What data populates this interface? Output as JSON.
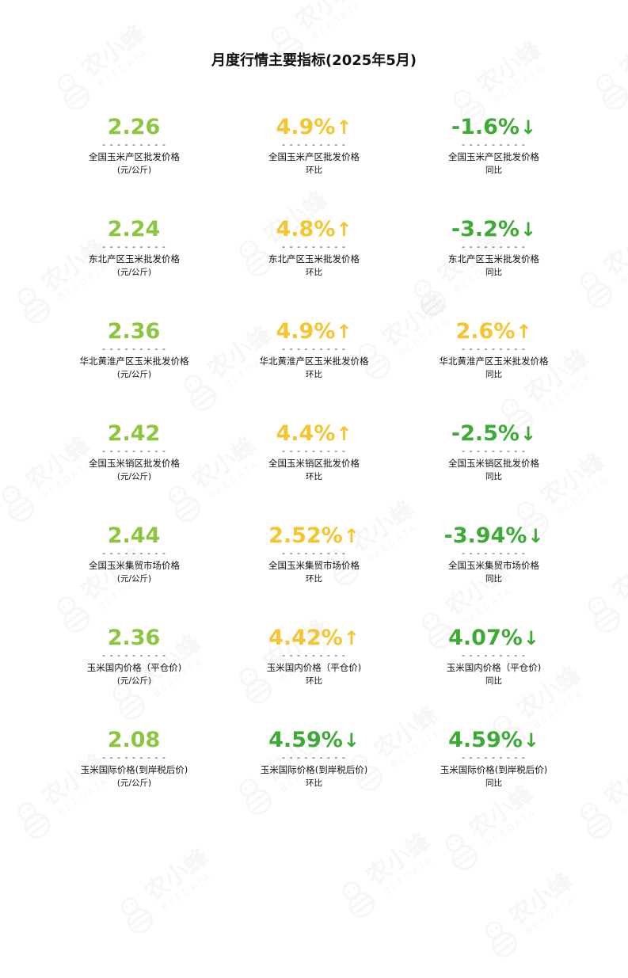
{
  "title": "月度行情主要指标(2025年5月)",
  "watermark": {
    "text_cn": "农小蜂",
    "text_en": "BEEDATA",
    "color": "#c9c9c9"
  },
  "colors": {
    "lime": "#8cc63f",
    "yellow": "#f5c431",
    "green": "#3daa35"
  },
  "divider": "- - - - - - - - -",
  "rows": [
    {
      "label": "全国玉米产区批发价格",
      "cells": [
        {
          "value": "2.26",
          "arrow": "",
          "color": "lime",
          "sub": "(元/公斤)"
        },
        {
          "value": "4.9%",
          "arrow": "↑",
          "color": "yellow",
          "sub": "环比"
        },
        {
          "value": "-1.6%",
          "arrow": "↓",
          "color": "green",
          "sub": "同比"
        }
      ]
    },
    {
      "label": "东北产区玉米批发价格",
      "cells": [
        {
          "value": "2.24",
          "arrow": "",
          "color": "lime",
          "sub": "(元/公斤)"
        },
        {
          "value": "4.8%",
          "arrow": "↑",
          "color": "yellow",
          "sub": "环比"
        },
        {
          "value": "-3.2%",
          "arrow": "↓",
          "color": "green",
          "sub": "同比"
        }
      ]
    },
    {
      "label": "华北黄淮产区玉米批发价格",
      "cells": [
        {
          "value": "2.36",
          "arrow": "",
          "color": "lime",
          "sub": "(元/公斤)"
        },
        {
          "value": "4.9%",
          "arrow": "↑",
          "color": "yellow",
          "sub": "环比"
        },
        {
          "value": "2.6%",
          "arrow": "↑",
          "color": "yellow",
          "sub": "同比"
        }
      ]
    },
    {
      "label": "全国玉米销区批发价格",
      "cells": [
        {
          "value": "2.42",
          "arrow": "",
          "color": "lime",
          "sub": "(元/公斤)"
        },
        {
          "value": "4.4%",
          "arrow": "↑",
          "color": "yellow",
          "sub": "环比"
        },
        {
          "value": "-2.5%",
          "arrow": "↓",
          "color": "green",
          "sub": "同比"
        }
      ]
    },
    {
      "label": "全国玉米集贸市场价格",
      "cells": [
        {
          "value": "2.44",
          "arrow": "",
          "color": "lime",
          "sub": "(元/公斤)"
        },
        {
          "value": "2.52%",
          "arrow": "↑",
          "color": "yellow",
          "sub": "环比"
        },
        {
          "value": "-3.94%",
          "arrow": "↓",
          "color": "green",
          "sub": "同比"
        }
      ]
    },
    {
      "label": "玉米国内价格（平仓价)",
      "cells": [
        {
          "value": "2.36",
          "arrow": "",
          "color": "lime",
          "sub": "(元/公斤)"
        },
        {
          "value": "4.42%",
          "arrow": "↑",
          "color": "yellow",
          "sub": "环比"
        },
        {
          "value": "4.07%",
          "arrow": "↓",
          "color": "green",
          "sub": "同比"
        }
      ]
    },
    {
      "label": "玉米国际价格(到岸税后价)",
      "cells": [
        {
          "value": "2.08",
          "arrow": "",
          "color": "lime",
          "sub": "(元/公斤)"
        },
        {
          "value": "4.59%",
          "arrow": "↓",
          "color": "green",
          "sub": "环比"
        },
        {
          "value": "4.59%",
          "arrow": "↓",
          "color": "green",
          "sub": "同比"
        }
      ]
    }
  ]
}
